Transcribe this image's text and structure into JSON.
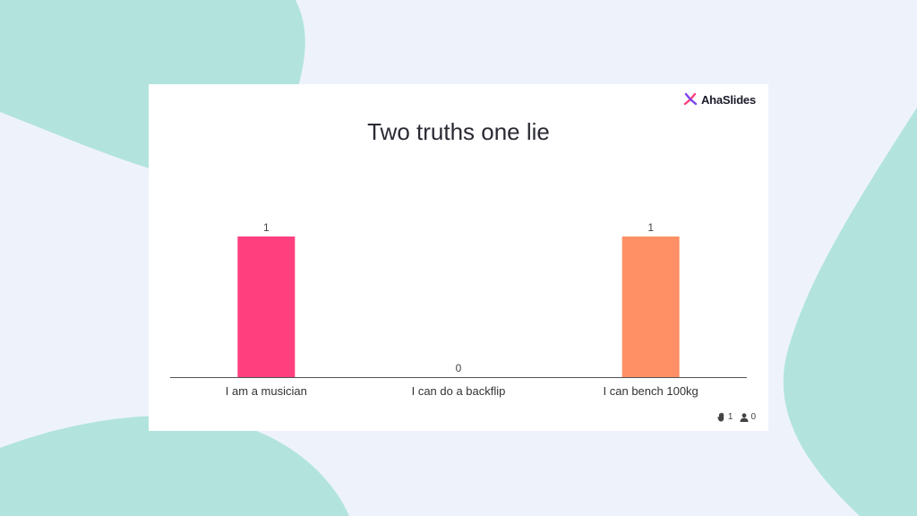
{
  "brand": {
    "name": "AhaSlides"
  },
  "slide": {
    "title": "Two truths one lie"
  },
  "colors": {
    "background": "#eef3fb",
    "blob": "#b2e4dd",
    "axis": "#555555"
  },
  "footer": {
    "reactions": "1",
    "participants": "0"
  },
  "chart_data": {
    "type": "bar",
    "categories": [
      "I am a musician",
      "I can do a backflip",
      "I can bench 100kg"
    ],
    "values": [
      1,
      0,
      1
    ],
    "colors": [
      "#ff3f7e",
      "#7a6ff0",
      "#ff9066"
    ],
    "ylim": [
      0,
      1
    ],
    "grid": false,
    "data_labels": true,
    "legend": "none"
  }
}
